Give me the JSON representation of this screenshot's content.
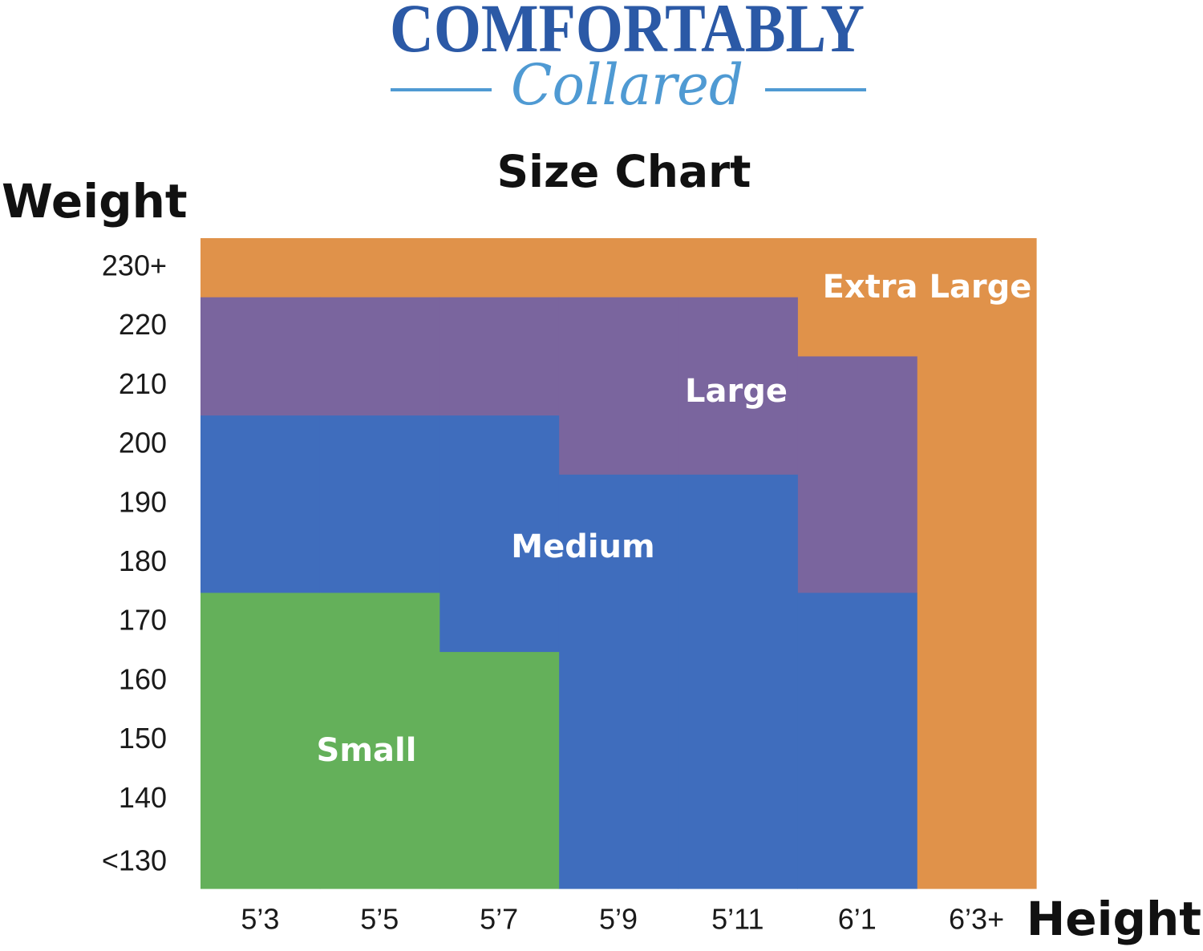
{
  "logo": {
    "brand_main": "COMFORTABLY",
    "brand_script": "Collared",
    "colors": {
      "main": "#2b59a6",
      "script": "#4f9ad3"
    }
  },
  "title": "Size Chart",
  "axes": {
    "y_label": "Weight",
    "x_label": "Height"
  },
  "chart_data": {
    "type": "heatmap",
    "title": "Size Chart",
    "xlabel": "Height",
    "ylabel": "Weight",
    "x_categories": [
      "5’3",
      "5’5",
      "5’7",
      "5’9",
      "5’11",
      "6’1",
      "6’3+"
    ],
    "y_categories": [
      "<130",
      "140",
      "150",
      "160",
      "170",
      "180",
      "190",
      "200",
      "210",
      "220",
      "230+"
    ],
    "sizes": [
      {
        "name": "Small",
        "color": "#64b05a"
      },
      {
        "name": "Medium",
        "color": "#3f6dbd"
      },
      {
        "name": "Large",
        "color": "#7a659e"
      },
      {
        "name": "Extra Large",
        "color": "#e0924a"
      }
    ],
    "regions": [
      {
        "size": "Extra Large",
        "cells": [
          {
            "x": "5’3",
            "y_from": "230+",
            "y_to": "230+"
          },
          {
            "x": "5’5",
            "y_from": "230+",
            "y_to": "230+"
          },
          {
            "x": "5’7",
            "y_from": "230+",
            "y_to": "230+"
          },
          {
            "x": "5’9",
            "y_from": "230+",
            "y_to": "230+"
          },
          {
            "x": "5’11",
            "y_from": "230+",
            "y_to": "230+"
          },
          {
            "x": "6’1",
            "y_from": "220",
            "y_to": "230+"
          },
          {
            "x": "6’3+",
            "y_from": "<130",
            "y_to": "230+"
          }
        ]
      },
      {
        "size": "Large",
        "cells": [
          {
            "x": "5’3",
            "y_from": "210",
            "y_to": "220"
          },
          {
            "x": "5’5",
            "y_from": "210",
            "y_to": "220"
          },
          {
            "x": "5’7",
            "y_from": "210",
            "y_to": "220"
          },
          {
            "x": "5’9",
            "y_from": "200",
            "y_to": "220"
          },
          {
            "x": "5’11",
            "y_from": "200",
            "y_to": "220"
          },
          {
            "x": "6’1",
            "y_from": "180",
            "y_to": "210"
          }
        ]
      },
      {
        "size": "Medium",
        "cells": [
          {
            "x": "5’3",
            "y_from": "180",
            "y_to": "200"
          },
          {
            "x": "5’5",
            "y_from": "180",
            "y_to": "200"
          },
          {
            "x": "5’7",
            "y_from": "170",
            "y_to": "200"
          },
          {
            "x": "5’9",
            "y_from": "<130",
            "y_to": "190"
          },
          {
            "x": "5’11",
            "y_from": "<130",
            "y_to": "190"
          },
          {
            "x": "6’1",
            "y_from": "<130",
            "y_to": "170"
          }
        ]
      },
      {
        "size": "Small",
        "cells": [
          {
            "x": "5’3",
            "y_from": "<130",
            "y_to": "170"
          },
          {
            "x": "5’5",
            "y_from": "<130",
            "y_to": "170"
          },
          {
            "x": "5’7",
            "y_from": "<130",
            "y_to": "160"
          }
        ]
      }
    ]
  }
}
